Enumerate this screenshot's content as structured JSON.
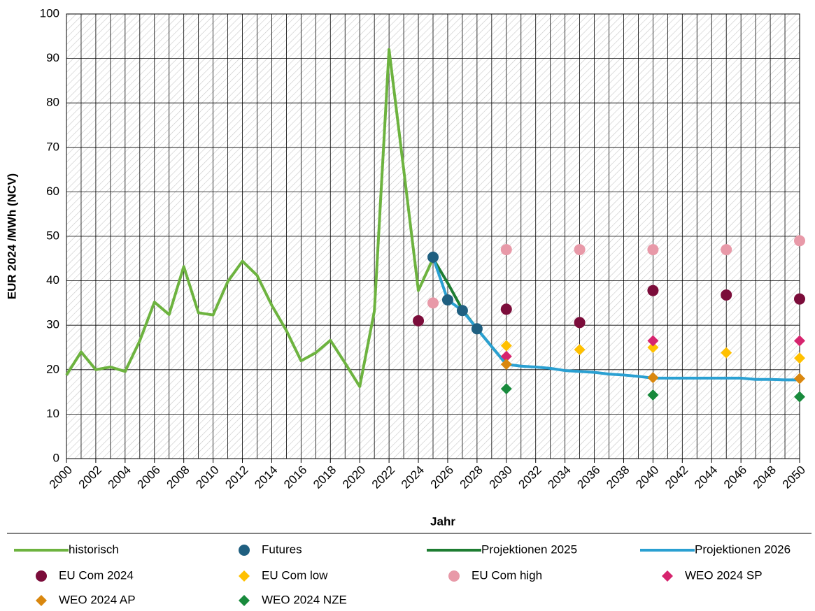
{
  "chart_data": {
    "type": "line",
    "xlabel": "Jahr",
    "ylabel": "EUR 2024 /MWh (NCV)",
    "xlim": [
      2000,
      2050
    ],
    "ylim": [
      0,
      100
    ],
    "xticks": [
      2000,
      2002,
      2004,
      2006,
      2008,
      2010,
      2012,
      2014,
      2016,
      2018,
      2020,
      2022,
      2024,
      2026,
      2028,
      2030,
      2032,
      2034,
      2036,
      2038,
      2040,
      2042,
      2044,
      2046,
      2048,
      2050
    ],
    "yticks": [
      0,
      10,
      20,
      30,
      40,
      50,
      60,
      70,
      80,
      90,
      100
    ],
    "x_grid_step": 1,
    "grid": true,
    "hatched_background": true,
    "legend": "bottom",
    "series": [
      {
        "name": "historisch",
        "color": "#6db33f",
        "mark": "line",
        "x": [
          2000,
          2001,
          2002,
          2003,
          2004,
          2005,
          2006,
          2007,
          2008,
          2009,
          2010,
          2011,
          2012,
          2013,
          2014,
          2015,
          2016,
          2017,
          2018,
          2019,
          2020,
          2021,
          2022,
          2023,
          2024,
          2025
        ],
        "values": [
          18.8,
          24,
          20,
          20.6,
          19.6,
          26.5,
          35.2,
          32.4,
          43.2,
          32.8,
          32.3,
          39.8,
          44.4,
          41.2,
          34.5,
          28.8,
          22,
          23.8,
          26.6,
          21.5,
          16.2,
          33.2,
          92,
          65,
          37.8,
          45
        ]
      },
      {
        "name": "Futures",
        "color": "#1f5f80",
        "mark": "circle",
        "x": [
          2025,
          2026,
          2027,
          2028
        ],
        "values": [
          45.3,
          35.7,
          33.3,
          29.2
        ]
      },
      {
        "name": "Projektionen 2025",
        "color": "#1e7d32",
        "mark": "line",
        "x": [
          2025,
          2026,
          2027,
          2028,
          2029,
          2030
        ],
        "values": [
          45,
          39.5,
          33.5,
          29.2,
          25.2,
          21.2
        ]
      },
      {
        "name": "Projektionen 2026",
        "color": "#2aa0d2",
        "mark": "line",
        "x": [
          2025,
          2026,
          2027,
          2028,
          2029,
          2030,
          2031,
          2032,
          2033,
          2034,
          2035,
          2036,
          2037,
          2038,
          2039,
          2040,
          2041,
          2042,
          2043,
          2044,
          2045,
          2046,
          2047,
          2048,
          2049,
          2050
        ],
        "values": [
          45.3,
          35.7,
          33.3,
          29.2,
          25.2,
          21.2,
          20.8,
          20.6,
          20.3,
          19.8,
          19.6,
          19.4,
          19,
          18.8,
          18.5,
          18.1,
          18.1,
          18.1,
          18.1,
          18.1,
          18.1,
          18.1,
          17.8,
          17.8,
          17.7,
          17.7
        ]
      },
      {
        "name": "EU Com 2024",
        "color": "#7b0c3a",
        "mark": "circle",
        "x": [
          2024,
          2030,
          2035,
          2040,
          2045,
          2050
        ],
        "values": [
          31,
          33.6,
          30.6,
          37.8,
          36.8,
          35.9
        ]
      },
      {
        "name": "EU Com low",
        "color": "#ffc000",
        "mark": "diamond",
        "x": [
          2030,
          2035,
          2040,
          2045,
          2050
        ],
        "values": [
          25.4,
          24.5,
          25,
          23.8,
          22.6
        ]
      },
      {
        "name": "EU Com high",
        "color": "#e899a8",
        "mark": "circle",
        "x": [
          2025,
          2030,
          2035,
          2040,
          2045,
          2050
        ],
        "values": [
          35,
          47,
          47,
          47,
          47,
          49
        ]
      },
      {
        "name": "WEO 2024 SP",
        "color": "#d6246e",
        "mark": "diamond",
        "x": [
          2030,
          2040,
          2050
        ],
        "values": [
          23,
          26.5,
          26.5
        ]
      },
      {
        "name": "WEO 2024 AP",
        "color": "#d9870f",
        "mark": "diamond",
        "x": [
          2030,
          2040,
          2050
        ],
        "values": [
          21.2,
          18.2,
          18
        ]
      },
      {
        "name": "WEO 2024 NZE",
        "color": "#188a3c",
        "mark": "diamond",
        "x": [
          2030,
          2040,
          2050
        ],
        "values": [
          15.7,
          14.3,
          13.9
        ]
      }
    ]
  }
}
